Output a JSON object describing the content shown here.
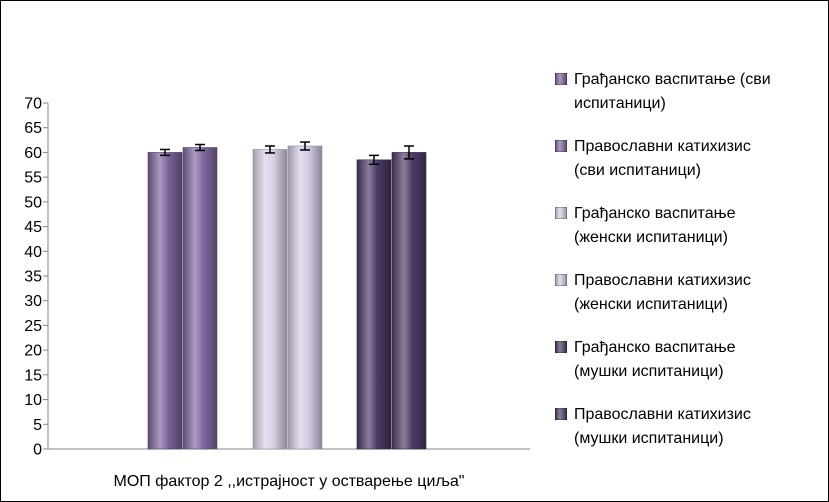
{
  "chart_data": {
    "type": "bar",
    "xlabel": "МОП фактор 2 ,,истрајност у остварење циља\"",
    "ylim": [
      0,
      70
    ],
    "yticks": [
      0,
      5,
      10,
      15,
      20,
      25,
      30,
      35,
      40,
      45,
      50,
      55,
      60,
      65,
      70
    ],
    "grid": false,
    "error_bars": true,
    "legend_position": "right",
    "series": [
      {
        "name": "Грађанско васпитање (сви\nиспитаници)",
        "value": 60.0,
        "error": 0.6,
        "color": "#7b6399"
      },
      {
        "name": "Православни катихизис\n(сви испитаници)",
        "value": 61.0,
        "error": 0.6,
        "color": "#7f68a0"
      },
      {
        "name": "Грађанско васпитање\n(женски испитаници)",
        "value": 60.6,
        "error": 0.7,
        "color": "#d8d0e6"
      },
      {
        "name": "Православни катихизис\n(женски испитаници)",
        "value": 61.3,
        "error": 0.8,
        "color": "#d4cbe3"
      },
      {
        "name": "Грађанско васпитање\n(мушки испитаници)",
        "value": 58.5,
        "error": 0.9,
        "color": "#4a3863"
      },
      {
        "name": "Православни катихизис\n(мушки испитаници)",
        "value": 60.0,
        "error": 1.3,
        "color": "#4d3b67"
      }
    ]
  }
}
